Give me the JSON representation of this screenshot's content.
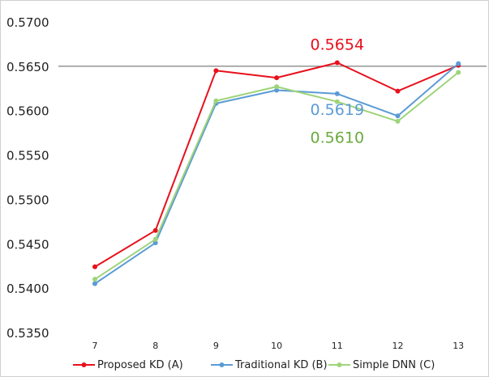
{
  "chart_data": {
    "type": "line",
    "title": "",
    "xlabel": "",
    "ylabel": "",
    "categories": [
      "7",
      "8",
      "9",
      "10",
      "11",
      "12",
      "13"
    ],
    "ylim": [
      0.535,
      0.57
    ],
    "yticks": [
      "0.5350",
      "0.5400",
      "0.5450",
      "0.5500",
      "0.5550",
      "0.5600",
      "0.5650",
      "0.5700"
    ],
    "grid": "horizontal",
    "reference_line": 0.565,
    "legend_position": "bottom",
    "series": [
      {
        "name": "Proposed KD (A)",
        "color": "#e8101c",
        "values": [
          0.5424,
          0.5465,
          0.5645,
          0.5637,
          0.5654,
          0.5622,
          0.5651
        ]
      },
      {
        "name": "Traditional KD (B)",
        "color": "#5b9bd5",
        "values": [
          0.5405,
          0.5451,
          0.5608,
          0.5623,
          0.5619,
          0.5594,
          0.5653
        ]
      },
      {
        "name": "Simple DNN (C)",
        "color": "#9fd47a",
        "values": [
          0.541,
          0.5455,
          0.5611,
          0.5627,
          0.561,
          0.5588,
          0.5643
        ]
      }
    ],
    "annotations": [
      {
        "text": "0.5654",
        "color": "#e8101c",
        "series": 0,
        "point": 4
      },
      {
        "text": "0.5619",
        "color": "#5b9bd5",
        "series": 1,
        "point": 4
      },
      {
        "text": "0.5610",
        "color": "#6aaa3e",
        "series": 2,
        "point": 4
      }
    ]
  }
}
